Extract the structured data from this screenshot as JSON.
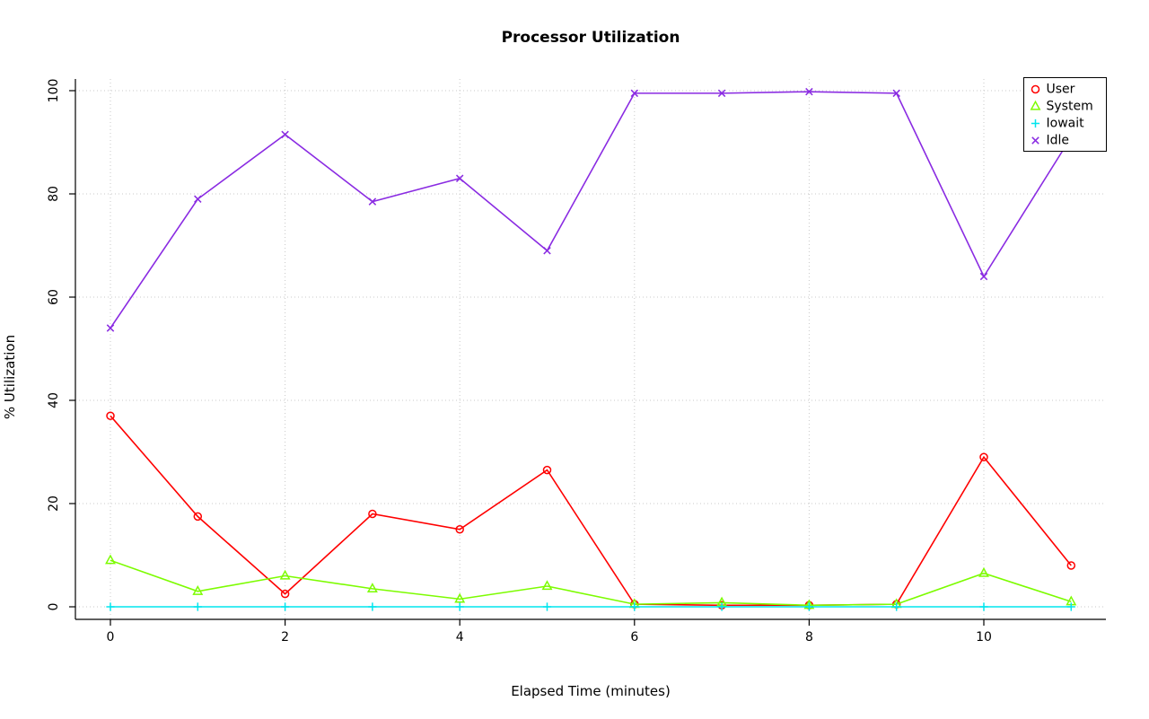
{
  "chart_data": {
    "type": "line",
    "title": "Processor Utilization",
    "xlabel": "Elapsed Time (minutes)",
    "ylabel": "% Utilization",
    "x": [
      0,
      1,
      2,
      3,
      4,
      5,
      6,
      7,
      8,
      9,
      10,
      11
    ],
    "x_ticks": [
      0,
      2,
      4,
      6,
      8,
      10
    ],
    "y_ticks": [
      0,
      20,
      40,
      60,
      80,
      100
    ],
    "xlim": [
      -0.44,
      11.44
    ],
    "ylim": [
      -4,
      104
    ],
    "grid": true,
    "grid_style": "dotted",
    "grid_color": "#c8c8c8",
    "axis_color": "#000000",
    "legend_position": "top-right",
    "series": [
      {
        "name": "User",
        "color": "#ff0000",
        "marker": "circle",
        "values": [
          37,
          17.5,
          2.5,
          18,
          15,
          26.5,
          0.5,
          0.3,
          0.3,
          0.5,
          29,
          8
        ]
      },
      {
        "name": "System",
        "color": "#7cfc00",
        "marker": "triangle",
        "values": [
          9,
          3,
          6,
          3.5,
          1.5,
          4,
          0.5,
          0.8,
          0.3,
          0.5,
          6.5,
          1
        ]
      },
      {
        "name": "Iowait",
        "color": "#00e5ee",
        "marker": "plus",
        "values": [
          0,
          0,
          0,
          0,
          0,
          0,
          0,
          0,
          0,
          0,
          0,
          0
        ]
      },
      {
        "name": "Idle",
        "color": "#8a2be2",
        "marker": "x",
        "values": [
          54,
          79,
          91.5,
          78.5,
          83,
          69,
          99.5,
          99.5,
          99.8,
          99.5,
          64,
          91
        ]
      }
    ]
  }
}
